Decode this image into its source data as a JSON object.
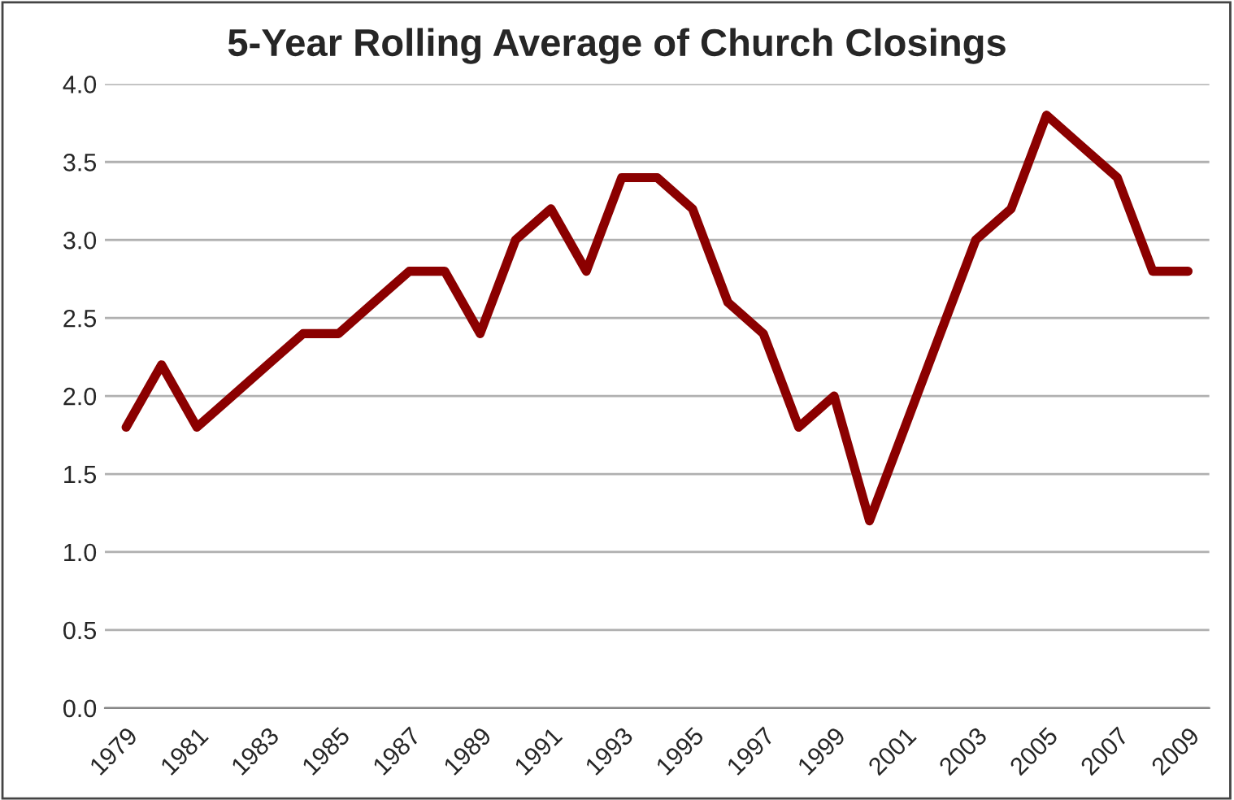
{
  "chart_data": {
    "type": "line",
    "title": "5-Year Rolling Average of Church Closings",
    "categories": [
      "1979",
      null,
      "1981",
      null,
      "1983",
      null,
      "1985",
      null,
      "1987",
      null,
      "1989",
      null,
      "1991",
      null,
      "1993",
      null,
      "1995",
      null,
      "1997",
      null,
      "1999",
      null,
      "2001",
      null,
      "2003",
      null,
      "2005",
      null,
      "2007",
      null,
      "2009"
    ],
    "series": [
      {
        "color": "#8b0000",
        "values": [
          1.8,
          2.2,
          1.8,
          2.0,
          2.2,
          2.4,
          2.4,
          2.6,
          2.8,
          2.8,
          2.4,
          3.0,
          3.2,
          2.8,
          3.4,
          3.4,
          3.2,
          2.6,
          2.4,
          1.8,
          2.0,
          1.2,
          1.8,
          2.4,
          3.0,
          3.2,
          3.8,
          3.6,
          3.4,
          2.8,
          2.8
        ]
      }
    ],
    "ylim": [
      0,
      4
    ],
    "yticks": [
      {
        "value": 0,
        "label": "0.0"
      },
      {
        "value": 0.5,
        "label": "0.5"
      },
      {
        "value": 1,
        "label": "1.0"
      },
      {
        "value": 1.5,
        "label": "1.5"
      },
      {
        "value": 2,
        "label": "2.0"
      },
      {
        "value": 2.5,
        "label": "2.5"
      },
      {
        "value": 3,
        "label": "3.0"
      },
      {
        "value": 3.5,
        "label": "3.5"
      },
      {
        "value": 4,
        "label": "4.0"
      }
    ],
    "grid": "y",
    "legend": false,
    "marker": "none",
    "line_style": "solid"
  }
}
